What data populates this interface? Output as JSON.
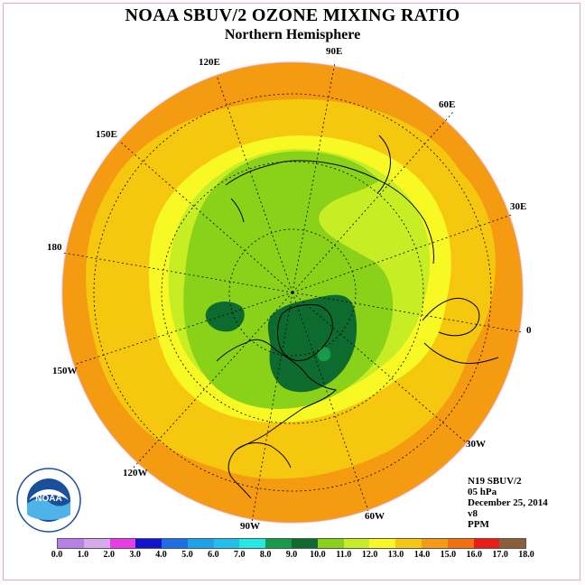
{
  "title": "NOAA SBUV/2 OZONE MIXING RATIO",
  "subtitle": "Northern Hemisphere",
  "longitude_labels": {
    "lon_90e": "90E",
    "lon_60e": "60E",
    "lon_30e": "30E",
    "lon_0": "0",
    "lon_30w": "30W",
    "lon_60w": "60W",
    "lon_90w": "90W",
    "lon_120w": "120W",
    "lon_150w": "150W",
    "lon_180": "180",
    "lon_150e": "150E",
    "lon_120e": "120E"
  },
  "info": {
    "satellite": "N19 SBUV/2",
    "pressure": "05 hPa",
    "date": "December 25, 2014",
    "version": "v8",
    "units": "PPM"
  },
  "logo_text": "NOAA",
  "legend": {
    "ticks": [
      "0.0",
      "1.0",
      "2.0",
      "3.0",
      "4.0",
      "5.0",
      "6.0",
      "7.0",
      "8.0",
      "9.0",
      "10.0",
      "11.0",
      "12.0",
      "13.0",
      "14.0",
      "15.0",
      "16.0",
      "17.0",
      "18.0"
    ],
    "colors": [
      "#b77fe7",
      "#d8a8ee",
      "#e93ce6",
      "#1212cf",
      "#1d6fe8",
      "#1aa3e9",
      "#1fc0ee",
      "#21e9e6",
      "#159b49",
      "#0e6b2f",
      "#8ad11a",
      "#c7ed24",
      "#f8f825",
      "#f6c70f",
      "#f59b11",
      "#f46f0f",
      "#ee1b12",
      "#8e5e3a"
    ]
  },
  "colors": {
    "band_outer": "#f59b11",
    "band_14": "#f6c70f",
    "band_13": "#f8f825",
    "band_12": "#c7ed24",
    "band_11": "#8ad11a",
    "band_10": "#0e6b2f",
    "band_9": "#159b49",
    "disk_border": "#f2a6b8"
  }
}
